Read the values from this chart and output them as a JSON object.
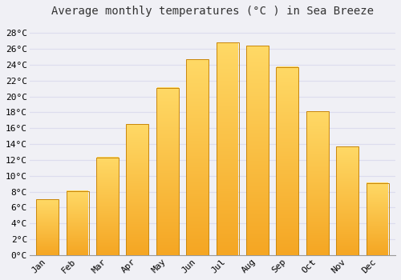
{
  "title": "Average monthly temperatures (°C ) in Sea Breeze",
  "months": [
    "Jan",
    "Feb",
    "Mar",
    "Apr",
    "May",
    "Jun",
    "Jul",
    "Aug",
    "Sep",
    "Oct",
    "Nov",
    "Dec"
  ],
  "values": [
    7.0,
    8.1,
    12.3,
    16.5,
    21.1,
    24.7,
    26.8,
    26.4,
    23.7,
    18.1,
    13.7,
    9.1
  ],
  "bar_color_bottom": "#F5A623",
  "bar_color_top": "#FFD966",
  "bar_edge_color": "#C8860A",
  "background_color": "#F0F0F5",
  "plot_bg_color": "#F0F0F5",
  "grid_color": "#DDDDEE",
  "ytick_labels": [
    "0°C",
    "2°C",
    "4°C",
    "6°C",
    "8°C",
    "10°C",
    "12°C",
    "14°C",
    "16°C",
    "18°C",
    "20°C",
    "22°C",
    "24°C",
    "26°C",
    "28°C"
  ],
  "ytick_values": [
    0,
    2,
    4,
    6,
    8,
    10,
    12,
    14,
    16,
    18,
    20,
    22,
    24,
    26,
    28
  ],
  "ylim": [
    0,
    29.5
  ],
  "title_fontsize": 10,
  "tick_fontsize": 8,
  "font_family": "monospace",
  "bar_width": 0.75
}
